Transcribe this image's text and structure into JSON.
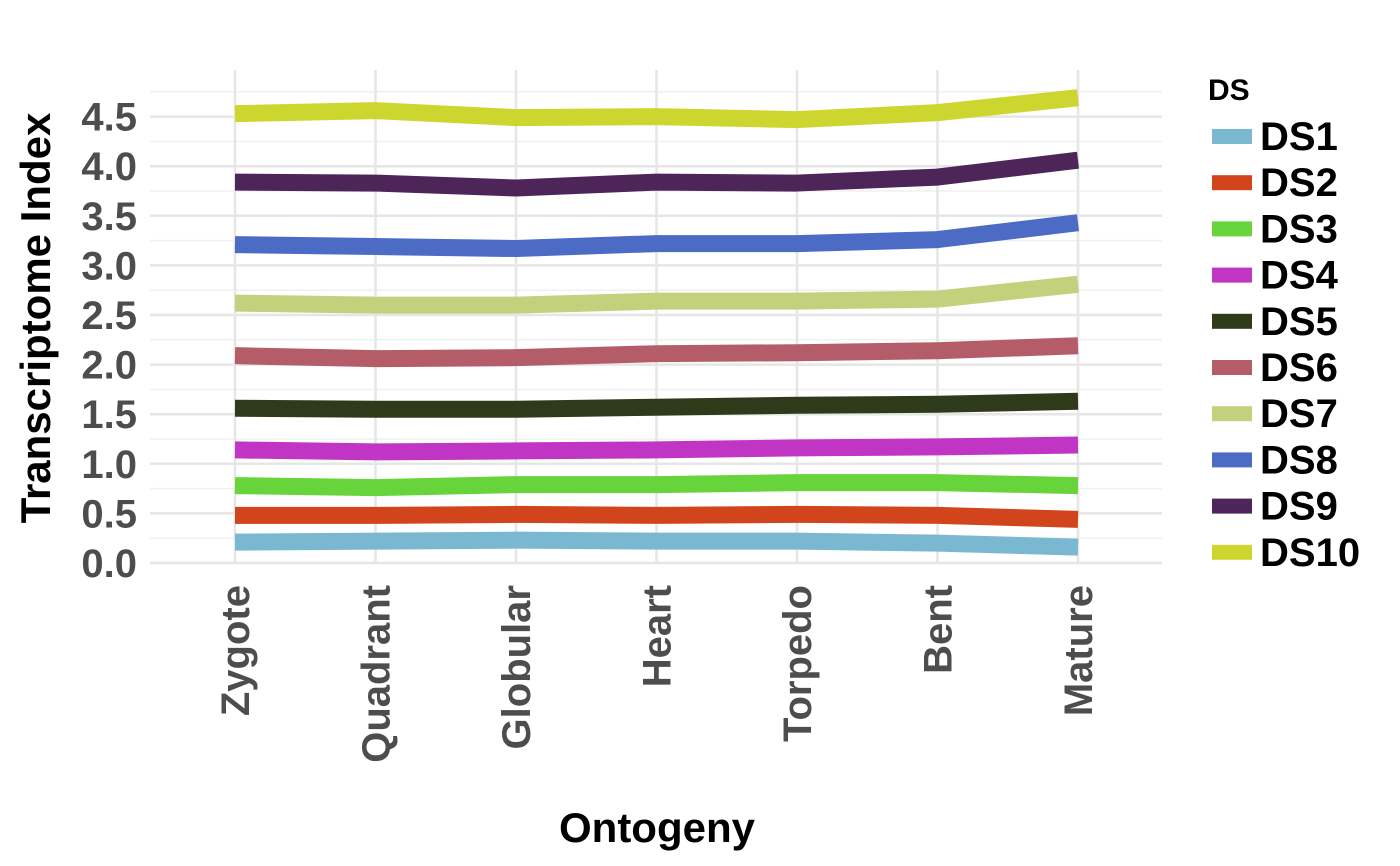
{
  "chart_data": {
    "type": "line",
    "xlabel": "Ontogeny",
    "ylabel": "Transcriptome Index",
    "categories": [
      "Zygote",
      "Quadrant",
      "Globular",
      "Heart",
      "Torpedo",
      "Bent",
      "Mature"
    ],
    "ylim": [
      0,
      5.05
    ],
    "yticks": [
      "0.0",
      "0.5",
      "1.0",
      "1.5",
      "2.0",
      "2.5",
      "3.0",
      "3.5",
      "4.0",
      "4.5"
    ],
    "grid": true,
    "legend": {
      "title": "DS",
      "position": "right"
    },
    "series": [
      {
        "name": "DS1",
        "color": "#7AB8D2",
        "values": [
          0.21,
          0.22,
          0.23,
          0.22,
          0.22,
          0.2,
          0.16
        ]
      },
      {
        "name": "DS2",
        "color": "#D2441C",
        "values": [
          0.48,
          0.48,
          0.49,
          0.48,
          0.49,
          0.48,
          0.44
        ]
      },
      {
        "name": "DS3",
        "color": "#66D43A",
        "values": [
          0.78,
          0.76,
          0.79,
          0.79,
          0.81,
          0.81,
          0.78
        ]
      },
      {
        "name": "DS4",
        "color": "#C135C4",
        "values": [
          1.14,
          1.12,
          1.13,
          1.14,
          1.16,
          1.17,
          1.19
        ]
      },
      {
        "name": "DS5",
        "color": "#2F3A1A",
        "values": [
          1.56,
          1.55,
          1.55,
          1.57,
          1.59,
          1.6,
          1.63
        ]
      },
      {
        "name": "DS6",
        "color": "#B45C68",
        "values": [
          2.09,
          2.06,
          2.07,
          2.11,
          2.12,
          2.14,
          2.19
        ]
      },
      {
        "name": "DS7",
        "color": "#C3D17D",
        "values": [
          2.62,
          2.6,
          2.6,
          2.64,
          2.64,
          2.66,
          2.81
        ]
      },
      {
        "name": "DS8",
        "color": "#4B6BC4",
        "values": [
          3.21,
          3.19,
          3.17,
          3.22,
          3.22,
          3.26,
          3.43
        ]
      },
      {
        "name": "DS9",
        "color": "#4E2559",
        "values": [
          3.84,
          3.83,
          3.78,
          3.84,
          3.83,
          3.89,
          4.06
        ]
      },
      {
        "name": "DS10",
        "color": "#CDD62F",
        "values": [
          4.53,
          4.56,
          4.49,
          4.5,
          4.47,
          4.54,
          4.69
        ]
      }
    ]
  }
}
